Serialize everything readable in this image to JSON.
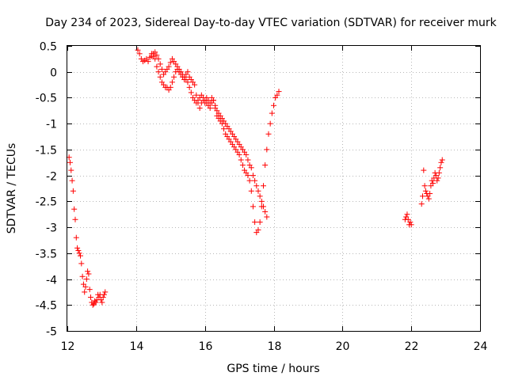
{
  "chart_data": {
    "type": "scatter",
    "title": "Day 234 of 2023, Sidereal Day-to-day VTEC variation (SDTVAR) for receiver murk",
    "xlabel": "GPS time / hours",
    "ylabel": "SDTVAR / TECUs",
    "xlim": [
      12,
      24
    ],
    "ylim": [
      -5,
      0.5
    ],
    "xticks": [
      "12",
      "14",
      "16",
      "18",
      "20",
      "22",
      "24"
    ],
    "yticks": [
      "0.5",
      "0",
      "-0.5",
      "-1",
      "-1.5",
      "-2",
      "-2.5",
      "-3",
      "-3.5",
      "-4",
      "-4.5",
      "-5"
    ],
    "marker": "+",
    "grid": true,
    "series": [
      {
        "name": "SDTVAR",
        "color": "#ff0000",
        "x": [
          12.05,
          12.08,
          12.11,
          12.14,
          12.17,
          12.2,
          12.23,
          12.26,
          12.29,
          12.32,
          12.35,
          12.38,
          12.41,
          12.44,
          12.47,
          12.5,
          12.53,
          12.56,
          12.59,
          12.62,
          12.65,
          12.68,
          12.71,
          12.74,
          12.77,
          12.8,
          12.83,
          12.86,
          12.89,
          12.92,
          12.95,
          12.98,
          13.01,
          13.04,
          13.07,
          13.1,
          14.05,
          14.1,
          14.15,
          14.2,
          14.25,
          14.3,
          14.35,
          14.4,
          14.45,
          14.5,
          14.55,
          14.6,
          14.65,
          14.7,
          14.75,
          14.8,
          14.85,
          14.9,
          14.95,
          15.0,
          15.05,
          15.1,
          15.15,
          15.2,
          15.25,
          15.3,
          15.35,
          15.4,
          15.45,
          15.5,
          15.55,
          15.6,
          15.65,
          15.7,
          15.75,
          15.8,
          15.85,
          15.9,
          15.95,
          16.0,
          16.05,
          16.1,
          16.15,
          16.2,
          16.25,
          16.3,
          16.35,
          16.4,
          16.45,
          16.5,
          16.55,
          16.6,
          16.65,
          16.7,
          16.75,
          16.8,
          16.85,
          16.9,
          16.95,
          17.0,
          17.05,
          17.1,
          17.15,
          17.2,
          17.25,
          17.3,
          17.35,
          17.4,
          17.45,
          17.5,
          17.55,
          17.6,
          17.65,
          17.7,
          17.75,
          17.8,
          17.85,
          17.9,
          17.95,
          18.0,
          18.05,
          18.1,
          18.15,
          14.45,
          14.5,
          14.55,
          14.6,
          14.65,
          14.7,
          14.75,
          14.8,
          14.85,
          14.9,
          14.95,
          15.0,
          15.05,
          15.1,
          15.15,
          15.2,
          15.25,
          15.3,
          15.35,
          15.4,
          15.45,
          15.5,
          15.55,
          15.6,
          15.65,
          15.7,
          15.75,
          15.8,
          15.85,
          15.9,
          15.95,
          16.0,
          16.05,
          16.1,
          16.15,
          16.2,
          16.25,
          16.3,
          16.35,
          16.4,
          16.45,
          16.5,
          16.55,
          16.6,
          16.65,
          16.7,
          16.75,
          16.8,
          16.85,
          16.9,
          16.95,
          17.0,
          17.05,
          17.1,
          17.15,
          17.2,
          17.25,
          17.3,
          17.35,
          17.4,
          17.45,
          17.5,
          17.55,
          17.6,
          17.65,
          17.7,
          17.75,
          17.8,
          21.82,
          21.85,
          21.88,
          21.91,
          21.94,
          21.97,
          22.0,
          22.3,
          22.33,
          22.36,
          22.39,
          22.42,
          22.45,
          22.48,
          22.51,
          22.54,
          22.57,
          22.6,
          22.63,
          22.66,
          22.69,
          22.72,
          22.75,
          22.78,
          22.81,
          22.84,
          22.87,
          22.9
        ],
        "y": [
          -1.65,
          -1.75,
          -1.9,
          -2.1,
          -2.3,
          -2.65,
          -2.85,
          -3.2,
          -3.4,
          -3.45,
          -3.5,
          -3.55,
          -3.7,
          -3.95,
          -4.1,
          -4.25,
          -4.15,
          -4.0,
          -3.85,
          -3.9,
          -4.2,
          -4.35,
          -4.45,
          -4.5,
          -4.48,
          -4.42,
          -4.45,
          -4.4,
          -4.3,
          -4.35,
          -4.3,
          -4.4,
          -4.45,
          -4.35,
          -4.3,
          -4.25,
          0.42,
          0.35,
          0.25,
          0.2,
          0.22,
          0.25,
          0.2,
          0.28,
          0.35,
          0.3,
          0.38,
          0.32,
          0.25,
          0.15,
          0.05,
          -0.05,
          0.0,
          0.05,
          0.1,
          0.18,
          0.25,
          0.2,
          0.15,
          0.1,
          0.05,
          0.0,
          -0.05,
          -0.1,
          -0.15,
          -0.2,
          -0.3,
          -0.4,
          -0.5,
          -0.55,
          -0.6,
          -0.55,
          -0.5,
          -0.45,
          -0.55,
          -0.6,
          -0.5,
          -0.55,
          -0.6,
          -0.5,
          -0.55,
          -0.7,
          -0.85,
          -0.9,
          -0.95,
          -1.0,
          -1.1,
          -1.2,
          -1.25,
          -1.3,
          -1.35,
          -1.4,
          -1.45,
          -1.5,
          -1.55,
          -1.6,
          -1.7,
          -1.8,
          -1.9,
          -1.95,
          -2.0,
          -2.1,
          -2.3,
          -2.6,
          -2.9,
          -3.1,
          -3.05,
          -2.9,
          -2.6,
          -2.2,
          -1.8,
          -1.5,
          -1.2,
          -1.0,
          -0.8,
          -0.65,
          -0.5,
          -0.45,
          -0.38,
          0.3,
          0.35,
          0.25,
          0.1,
          0.0,
          -0.1,
          -0.2,
          -0.25,
          -0.3,
          -0.3,
          -0.35,
          -0.3,
          -0.2,
          -0.1,
          0.0,
          0.05,
          0.0,
          -0.05,
          -0.1,
          -0.15,
          -0.05,
          0.0,
          -0.1,
          -0.15,
          -0.2,
          -0.25,
          -0.45,
          -0.6,
          -0.7,
          -0.6,
          -0.5,
          -0.55,
          -0.6,
          -0.65,
          -0.7,
          -0.6,
          -0.55,
          -0.65,
          -0.75,
          -0.8,
          -0.85,
          -0.9,
          -0.95,
          -1.0,
          -1.05,
          -1.1,
          -1.15,
          -1.2,
          -1.25,
          -1.3,
          -1.35,
          -1.4,
          -1.45,
          -1.5,
          -1.55,
          -1.6,
          -1.7,
          -1.8,
          -1.85,
          -2.0,
          -2.1,
          -2.2,
          -2.3,
          -2.4,
          -2.5,
          -2.6,
          -2.7,
          -2.8,
          -2.85,
          -2.8,
          -2.75,
          -2.85,
          -2.95,
          -2.9,
          -2.95,
          -2.55,
          -2.4,
          -1.9,
          -2.2,
          -2.3,
          -2.35,
          -2.4,
          -2.45,
          -2.35,
          -2.2,
          -2.1,
          -2.15,
          -2.05,
          -1.95,
          -2.0,
          -2.1,
          -2.05,
          -1.95,
          -1.85,
          -1.75,
          -1.7
        ]
      }
    ]
  }
}
